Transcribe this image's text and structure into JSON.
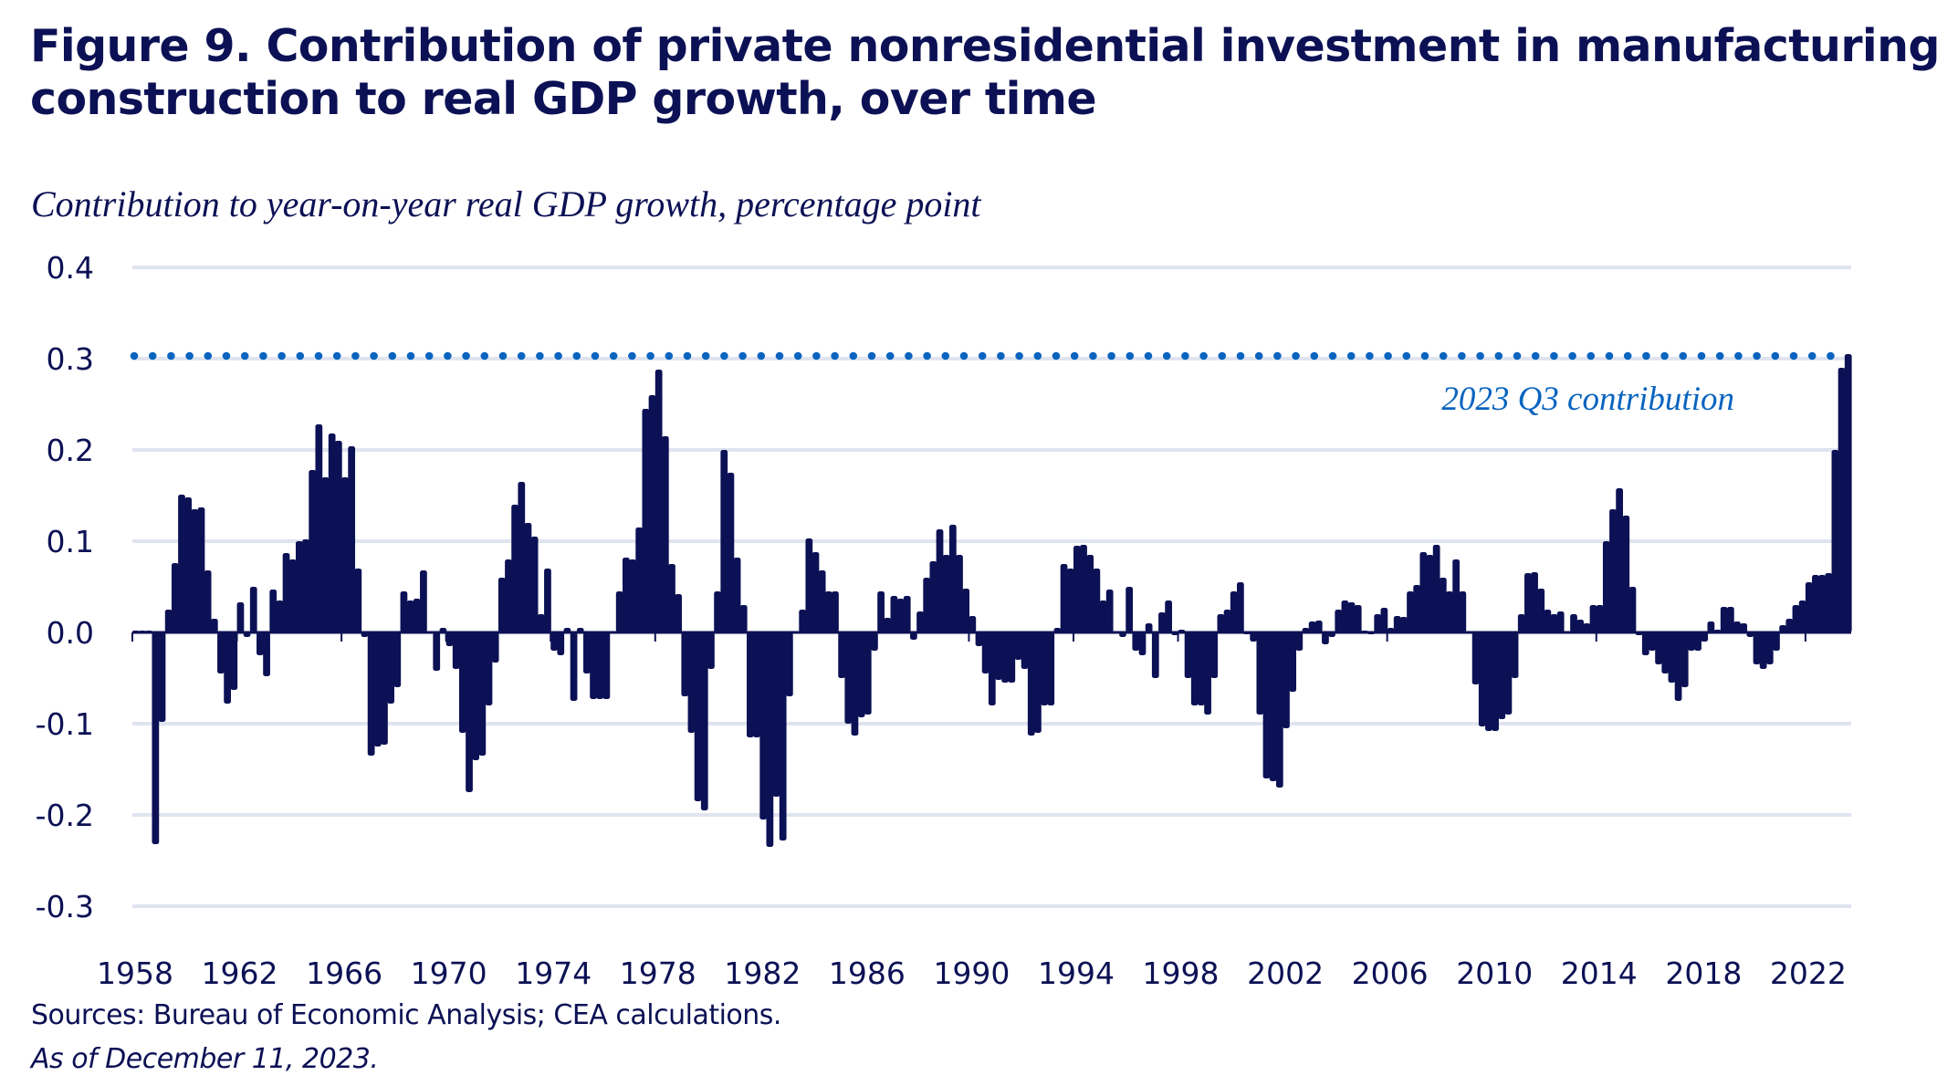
{
  "figure": {
    "title": "Figure 9. Contribution of private nonresidential investment in manufacturing construction to real GDP growth, over time",
    "subtitle": "Contribution to year-on-year real GDP growth, percentage point",
    "sources": "Sources: Bureau of Economic Analysis; CEA calculations.",
    "as_of": "As of December 11, 2023."
  },
  "colors": {
    "bars": "#0c1155",
    "reference_line": "#0a64bf",
    "gridlines": "#dfe4ef",
    "text": "#0c1155",
    "annotation": "#0a64bf"
  },
  "chart_data": {
    "type": "bar",
    "title": "Figure 9. Contribution of private nonresidential investment in manufacturing construction to real GDP growth, over time",
    "subtitle": "Contribution to year-on-year real GDP growth, percentage point",
    "xlabel": "",
    "ylabel": "Contribution to year-on-year real GDP growth, percentage point",
    "frequency": "quarterly",
    "start": "1958 Q1",
    "end": "2023 Q3",
    "ylim": [
      -0.3,
      0.4
    ],
    "yticks": [
      0.4,
      0.3,
      0.2,
      0.1,
      0.0,
      -0.1,
      -0.2,
      -0.3
    ],
    "ytick_labels": [
      "0.4",
      "0.3",
      "0.2",
      "0.1",
      "0.0",
      "-0.1",
      "-0.2",
      "-0.3"
    ],
    "xticks": [
      "1958",
      "1962",
      "1966",
      "1970",
      "1974",
      "1978",
      "1982",
      "1986",
      "1990",
      "1994",
      "1998",
      "2002",
      "2006",
      "2010",
      "2014",
      "2018",
      "2022"
    ],
    "grid": true,
    "legend": "none",
    "reference_line": {
      "value": 0.305,
      "style": "dotted",
      "label": "2023 Q3 contribution"
    },
    "values": [
      0.002,
      0.002,
      0.002,
      -0.232,
      -0.098,
      0.025,
      0.076,
      0.151,
      0.148,
      0.135,
      0.137,
      0.068,
      0.015,
      -0.045,
      -0.078,
      -0.063,
      0.033,
      -0.005,
      0.05,
      -0.025,
      -0.048,
      0.047,
      0.035,
      0.087,
      0.08,
      0.1,
      0.102,
      0.178,
      0.228,
      0.17,
      0.218,
      0.21,
      0.17,
      0.204,
      0.07,
      -0.005,
      -0.135,
      -0.125,
      -0.123,
      -0.078,
      -0.06,
      0.045,
      0.035,
      0.037,
      0.068,
      0.0,
      -0.042,
      0.005,
      -0.015,
      -0.04,
      -0.11,
      -0.175,
      -0.14,
      -0.135,
      -0.08,
      -0.033,
      0.06,
      0.08,
      0.14,
      0.165,
      0.12,
      0.105,
      0.02,
      0.07,
      -0.02,
      -0.025,
      0.005,
      -0.075,
      0.005,
      -0.045,
      -0.073,
      -0.073,
      -0.073,
      0.0,
      0.045,
      0.082,
      0.08,
      0.115,
      0.245,
      0.26,
      0.288,
      0.215,
      0.075,
      0.042,
      -0.07,
      -0.11,
      -0.185,
      -0.195,
      -0.04,
      0.045,
      0.2,
      0.175,
      0.082,
      0.03,
      -0.115,
      -0.115,
      -0.205,
      -0.235,
      -0.18,
      -0.228,
      -0.07,
      0.0,
      0.025,
      0.103,
      0.088,
      0.068,
      0.045,
      0.045,
      -0.05,
      -0.1,
      -0.113,
      -0.093,
      -0.09,
      -0.02,
      0.045,
      0.016,
      0.04,
      0.037,
      0.04,
      -0.008,
      0.023,
      0.06,
      0.078,
      0.113,
      0.085,
      0.118,
      0.085,
      0.048,
      0.018,
      -0.015,
      -0.045,
      -0.08,
      -0.052,
      -0.055,
      -0.055,
      -0.03,
      -0.04,
      -0.113,
      -0.11,
      -0.08,
      -0.08,
      0.005,
      0.075,
      0.07,
      0.095,
      0.096,
      0.085,
      0.07,
      0.035,
      0.047,
      0.0,
      -0.005,
      0.05,
      -0.02,
      -0.025,
      0.01,
      -0.05,
      0.022,
      0.035,
      -0.003,
      0.003,
      -0.05,
      -0.08,
      -0.08,
      -0.09,
      -0.05,
      0.02,
      0.025,
      0.045,
      0.055,
      -0.002,
      -0.01,
      -0.09,
      -0.16,
      -0.163,
      -0.17,
      -0.105,
      -0.065,
      -0.02,
      0.005,
      0.012,
      0.013,
      -0.013,
      -0.005,
      0.025,
      0.035,
      0.033,
      0.03,
      0.002,
      -0.002,
      0.02,
      0.027,
      0.005,
      0.018,
      0.017,
      0.045,
      0.052,
      0.088,
      0.085,
      0.096,
      0.06,
      0.045,
      0.08,
      0.045,
      0.0,
      -0.057,
      -0.103,
      -0.108,
      -0.108,
      -0.095,
      -0.09,
      -0.05,
      0.02,
      0.065,
      0.066,
      0.048,
      0.025,
      0.02,
      0.023,
      0.0,
      0.02,
      0.014,
      0.01,
      0.03,
      0.03,
      0.1,
      0.135,
      0.158,
      0.128,
      0.05,
      -0.003,
      -0.025,
      -0.02,
      -0.035,
      -0.045,
      -0.055,
      -0.075,
      -0.06,
      -0.02,
      -0.02,
      -0.01,
      0.012,
      0.003,
      0.028,
      0.028,
      0.012,
      0.01,
      -0.005,
      -0.035,
      -0.04,
      -0.035,
      -0.02,
      0.008,
      0.015,
      0.03,
      0.035,
      0.055,
      0.063,
      0.063,
      0.065,
      0.2,
      0.29,
      0.305
    ]
  }
}
